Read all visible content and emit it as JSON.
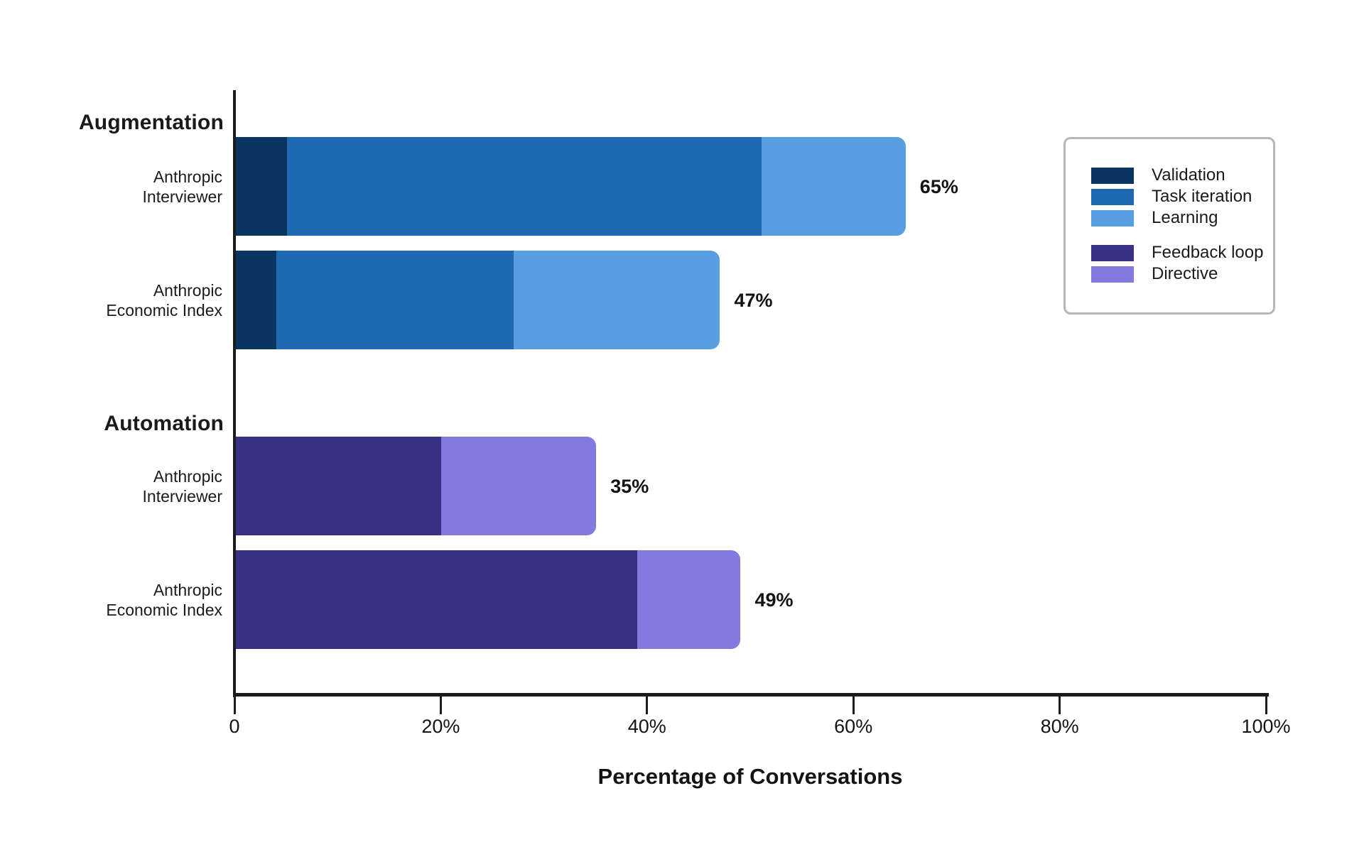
{
  "chart_data": {
    "type": "stacked_bar_horizontal",
    "xlabel": "Percentage of Conversations",
    "xlim": [
      0,
      100
    ],
    "grid": false,
    "legend_position": "right",
    "x_ticks": [
      {
        "value": 0,
        "label": "0"
      },
      {
        "value": 20,
        "label": "20%"
      },
      {
        "value": 40,
        "label": "40%"
      },
      {
        "value": 60,
        "label": "60%"
      },
      {
        "value": 80,
        "label": "80%"
      },
      {
        "value": 100,
        "label": "100%"
      }
    ],
    "series": [
      {
        "name": "Validation",
        "color": "#0a3561"
      },
      {
        "name": "Task iteration",
        "color": "#1e69b2"
      },
      {
        "name": "Learning",
        "color": "#589fe1"
      },
      {
        "name": "Feedback loop",
        "color": "#393185"
      },
      {
        "name": "Directive",
        "color": "#827ade"
      }
    ],
    "groups": [
      {
        "label": "Augmentation",
        "rows": [
          {
            "label_lines": [
              "Anthropic",
              "Interviewer"
            ],
            "segments": [
              {
                "series": "Validation",
                "value": 5
              },
              {
                "series": "Task iteration",
                "value": 46
              },
              {
                "series": "Learning",
                "value": 14
              }
            ],
            "total": 65,
            "total_label": "65%"
          },
          {
            "label_lines": [
              "Anthropic",
              "Economic Index"
            ],
            "segments": [
              {
                "series": "Validation",
                "value": 4
              },
              {
                "series": "Task iteration",
                "value": 23
              },
              {
                "series": "Learning",
                "value": 20
              }
            ],
            "total": 47,
            "total_label": "47%"
          }
        ]
      },
      {
        "label": "Automation",
        "rows": [
          {
            "label_lines": [
              "Anthropic",
              "Interviewer"
            ],
            "segments": [
              {
                "series": "Feedback loop",
                "value": 20
              },
              {
                "series": "Directive",
                "value": 15
              }
            ],
            "total": 35,
            "total_label": "35%"
          },
          {
            "label_lines": [
              "Anthropic",
              "Economic Index"
            ],
            "segments": [
              {
                "series": "Feedback loop",
                "value": 39
              },
              {
                "series": "Directive",
                "value": 10
              }
            ],
            "total": 49,
            "total_label": "49%"
          }
        ]
      }
    ],
    "legend": {
      "groups": [
        {
          "items": [
            {
              "label": "Validation",
              "color": "#0a3561"
            },
            {
              "label": "Task iteration",
              "color": "#1e69b2"
            },
            {
              "label": "Learning",
              "color": "#589fe1"
            }
          ]
        },
        {
          "items": [
            {
              "label": "Feedback loop",
              "color": "#393185"
            },
            {
              "label": "Directive",
              "color": "#827ade"
            }
          ]
        }
      ]
    },
    "colors": {
      "background": "#ffffff",
      "axis": "#1c1c1c",
      "text": "#1a1a1a",
      "legend_border": "#b8b8b0"
    }
  }
}
